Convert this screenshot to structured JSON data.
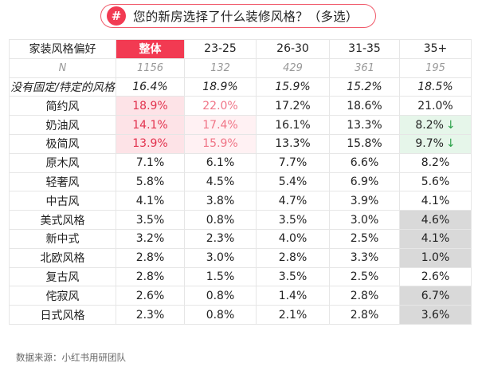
{
  "title": {
    "badge": "#",
    "text": "您的新房选择了什么装修风格？（多选）"
  },
  "table": {
    "header": [
      "家装风格偏好",
      "整体",
      "23-25",
      "26-30",
      "31-35",
      "35+"
    ],
    "n_row": [
      "N",
      "1156",
      "132",
      "429",
      "361",
      "195"
    ],
    "rows": [
      {
        "label": "没有固定/特定的风格",
        "values": [
          "16.4%",
          "18.9%",
          "15.9%",
          "15.2%",
          "18.5%"
        ]
      },
      {
        "label": "简约风",
        "values": [
          "18.9%",
          "22.0%",
          "17.2%",
          "18.6%",
          "21.0%"
        ]
      },
      {
        "label": "奶油风",
        "values": [
          "14.1%",
          "17.4%",
          "16.1%",
          "13.3%",
          "8.2%"
        ]
      },
      {
        "label": "极简风",
        "values": [
          "13.9%",
          "15.9%",
          "13.3%",
          "15.8%",
          "9.7%"
        ]
      },
      {
        "label": "原木风",
        "values": [
          "7.1%",
          "6.1%",
          "7.7%",
          "6.6%",
          "8.2%"
        ]
      },
      {
        "label": "轻奢风",
        "values": [
          "5.8%",
          "4.5%",
          "5.4%",
          "6.9%",
          "5.6%"
        ]
      },
      {
        "label": "中古风",
        "values": [
          "4.1%",
          "3.8%",
          "4.7%",
          "3.9%",
          "4.1%"
        ]
      },
      {
        "label": "美式风格",
        "values": [
          "3.5%",
          "0.8%",
          "3.5%",
          "3.0%",
          "4.6%"
        ]
      },
      {
        "label": "新中式",
        "values": [
          "3.2%",
          "2.3%",
          "4.0%",
          "2.5%",
          "4.1%"
        ]
      },
      {
        "label": "北欧风格",
        "values": [
          "2.8%",
          "3.0%",
          "2.8%",
          "3.3%",
          "1.0%"
        ]
      },
      {
        "label": "复古风",
        "values": [
          "2.8%",
          "1.5%",
          "3.5%",
          "2.5%",
          "2.6%"
        ]
      },
      {
        "label": "侘寂风",
        "values": [
          "2.6%",
          "0.8%",
          "1.4%",
          "2.8%",
          "6.7%"
        ]
      },
      {
        "label": "日式风格",
        "values": [
          "2.3%",
          "0.8%",
          "2.1%",
          "2.8%",
          "3.6%"
        ]
      }
    ],
    "down_arrow": "↓"
  },
  "colors": {
    "accent": "#f23a52",
    "pink_highlight": "#fde3e7",
    "green_highlight": "#e6f6ea",
    "gray_highlight": "#d9d9d9"
  },
  "source": "数据来源：小红书用研团队"
}
